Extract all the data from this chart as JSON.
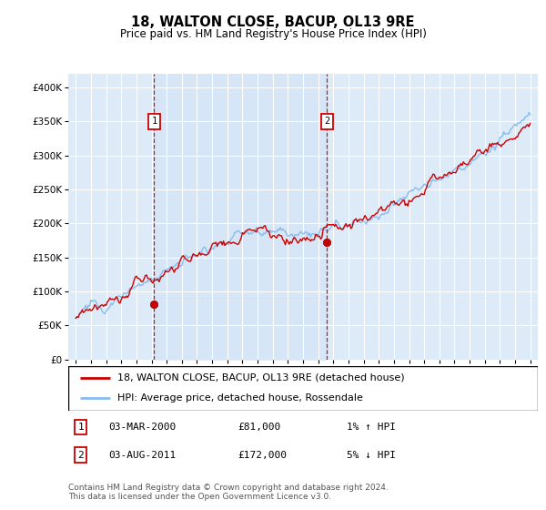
{
  "title": "18, WALTON CLOSE, BACUP, OL13 9RE",
  "subtitle": "Price paid vs. HM Land Registry's House Price Index (HPI)",
  "legend_line1": "18, WALTON CLOSE, BACUP, OL13 9RE (detached house)",
  "legend_line2": "HPI: Average price, detached house, Rossendale",
  "annotation1_label": "1",
  "annotation1_date": "03-MAR-2000",
  "annotation1_price": "£81,000",
  "annotation1_hpi": "1% ↑ HPI",
  "annotation2_label": "2",
  "annotation2_date": "03-AUG-2011",
  "annotation2_price": "£172,000",
  "annotation2_hpi": "5% ↓ HPI",
  "footer": "Contains HM Land Registry data © Crown copyright and database right 2024.\nThis data is licensed under the Open Government Licence v3.0.",
  "house_color": "#cc0000",
  "hpi_color": "#88bbee",
  "hpi_fill_color": "#d0e4f7",
  "marker_color": "#cc0000",
  "annotation_box_color": "#cc0000",
  "vline_color": "#cc0000",
  "background_color": "#ddeaf7",
  "grid_color": "#ffffff",
  "ylim": [
    0,
    420000
  ],
  "yticks": [
    0,
    50000,
    100000,
    150000,
    200000,
    250000,
    300000,
    350000,
    400000
  ],
  "x_start_year": 1995,
  "x_end_year": 2025,
  "purchase1_year": 2000.17,
  "purchase1_price": 81000,
  "purchase2_year": 2011.58,
  "purchase2_price": 172000
}
